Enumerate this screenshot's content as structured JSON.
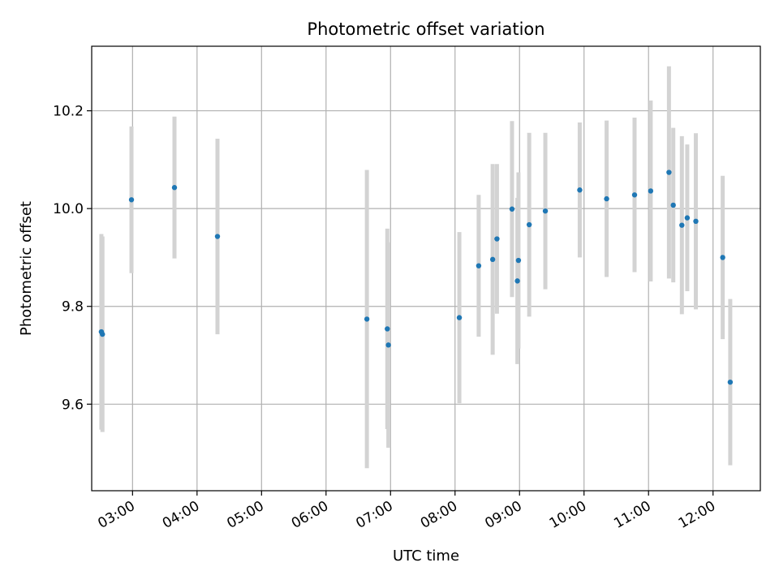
{
  "chart_data": {
    "type": "scatter",
    "title": "Photometric offset variation",
    "xlabel": "UTC time",
    "ylabel": "Photometric offset",
    "x_ticks": [
      "03:00",
      "04:00",
      "05:00",
      "06:00",
      "07:00",
      "08:00",
      "09:00",
      "10:00",
      "11:00",
      "12:00"
    ],
    "y_ticks": [
      "9.6",
      "9.8",
      "10.0",
      "10.2"
    ],
    "xlim": [
      "02:22",
      "12:44"
    ],
    "ylim": [
      9.423,
      10.332
    ],
    "grid": true,
    "colors": {
      "points": "#1f77b4",
      "errorbars": "#d3d3d3",
      "grid": "#b0b0b0"
    },
    "series": [
      {
        "points": [
          {
            "t": "02:31",
            "y": 9.748,
            "err": 0.2
          },
          {
            "t": "02:32",
            "y": 9.743,
            "err": 0.2
          },
          {
            "t": "02:59",
            "y": 10.018,
            "err": 0.15
          },
          {
            "t": "03:39",
            "y": 10.043,
            "err": 0.145
          },
          {
            "t": "04:19",
            "y": 9.943,
            "err": 0.2
          },
          {
            "t": "06:38",
            "y": 9.774,
            "err": 0.305
          },
          {
            "t": "06:57",
            "y": 9.754,
            "err": 0.205
          },
          {
            "t": "06:58",
            "y": 9.721,
            "err": 0.21
          },
          {
            "t": "08:04",
            "y": 9.777,
            "err": 0.175
          },
          {
            "t": "08:22",
            "y": 9.883,
            "err": 0.145
          },
          {
            "t": "08:35",
            "y": 9.896,
            "err": 0.195
          },
          {
            "t": "08:39",
            "y": 9.938,
            "err": 0.153
          },
          {
            "t": "08:53",
            "y": 9.999,
            "err": 0.18
          },
          {
            "t": "08:58",
            "y": 9.852,
            "err": 0.17
          },
          {
            "t": "08:59",
            "y": 9.894,
            "err": 0.18
          },
          {
            "t": "09:09",
            "y": 9.967,
            "err": 0.188
          },
          {
            "t": "09:24",
            "y": 9.995,
            "err": 0.16
          },
          {
            "t": "09:56",
            "y": 10.038,
            "err": 0.138
          },
          {
            "t": "10:21",
            "y": 10.02,
            "err": 0.16
          },
          {
            "t": "10:47",
            "y": 10.028,
            "err": 0.158
          },
          {
            "t": "11:02",
            "y": 10.036,
            "err": 0.185
          },
          {
            "t": "11:19",
            "y": 10.074,
            "err": 0.217
          },
          {
            "t": "11:23",
            "y": 10.007,
            "err": 0.158
          },
          {
            "t": "11:31",
            "y": 9.966,
            "err": 0.182
          },
          {
            "t": "11:36",
            "y": 9.981,
            "err": 0.15
          },
          {
            "t": "11:44",
            "y": 9.974,
            "err": 0.18
          },
          {
            "t": "12:09",
            "y": 9.9,
            "err": 0.167
          },
          {
            "t": "12:16",
            "y": 9.645,
            "err": 0.17
          }
        ]
      }
    ]
  }
}
